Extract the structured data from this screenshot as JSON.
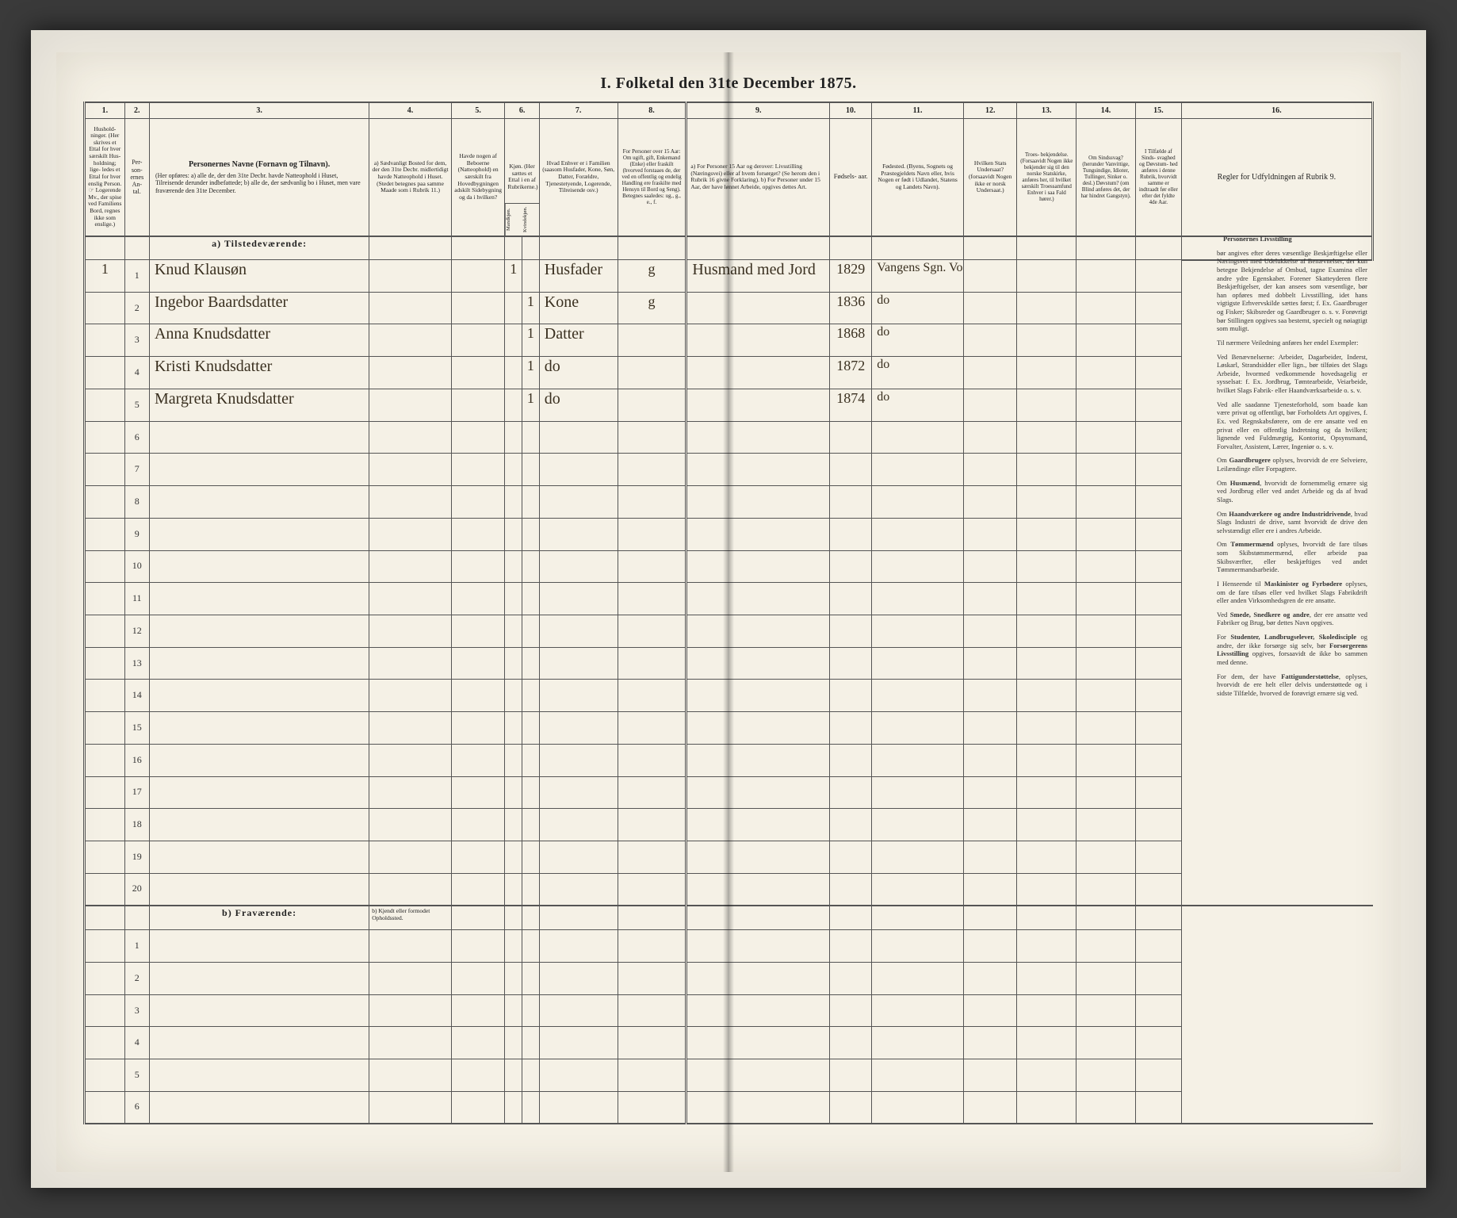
{
  "title": "I. Folketal den 31te December 1875.",
  "column_numbers": [
    "1.",
    "2.",
    "3.",
    "4.",
    "5.",
    "6.",
    "7.",
    "8.",
    "9.",
    "10.",
    "11.",
    "12.",
    "13.",
    "14.",
    "15.",
    "16."
  ],
  "headers": {
    "c1": "Hushold-\nninger.\n(Her skrives et\nEttal for hver\nsærskilt Hus-\nholdning; lige-\nledes et Ettal for\nhver enslig\nPerson.\n☞ Logerende Mv.,\nder spise ved\nFamiliens\nBord, regnes ikke\nsom enslige.)",
    "c2": "Per-\nson-\nernes\nAn-\ntal.",
    "c3_title": "Personernes Navne (Fornavn og Tilnavn).",
    "c3_sub": "(Her opføres:\na) alle de, der den 31te Decbr. havde Natteophold i Huset, Tilreisende derunder indbefattede;\nb) alle de, der sædvanlig bo i Huset, men vare fraværende den 31te December.",
    "c4a": "a) Sædvanligt Bosted for dem, der den 31te Decbr. midlertidigt havde Natteophold i Huset. (Stedet betegnes paa samme Maade som i Rubrik 11.)",
    "c4b": "b) Kjendt eller formodet Opholdssted.",
    "c5": "Havde nogen af Beboerne (Natteophold) en særskilt fra Hovedbygningen adskilt Sidebygning og da i hvilken?",
    "c6": "Kjøn.\n(Her sættes et Ettal i en af Rubrikerne.)",
    "c6m": "Mandkjøn.",
    "c6k": "Kvindekjøn.",
    "c7": "Hvad Enhver er i Familien\n(saasom Husfader, Kone, Søn, Datter, Forældre, Tjenestetyende, Logerende, Tilreisende osv.)",
    "c8": "For Personer over 15 Aar: Om ugift, gift, Enkemand (Enke) eller fraskilt (hvorved forstaaes de, der ved en offentlig og endelig Handling ere fraskilte med Hensyn til Bord og Seng).\nBetegnes saaledes: ug., g., e., f.",
    "c9": "a) For Personer 15 Aar og derover: Livsstilling (Næringsvei) eller af hvem forsørget? (Se herom den i Rubrik 16 givne Forklaring).\nb) For Personer under 15 Aar, der have lønnet Arbeide, opgives dettes Art.",
    "c10": "Fødsels-\naar.",
    "c11": "Fødested.\n(Byens, Sognets og Præstegjeldets Navn eller, hvis Nogen er født i Udlandet, Statens og Landets Navn).",
    "c12": "Hvilken Stats Undersaat?\n(forsaavidt Nogen ikke er norsk Undersaat.)",
    "c13": "Troes-\nbekjendelse.\n(Forsaavidt Nogen ikke bekjender sig til den norske Statskirke, anføres her, til hvilket særskilt Troessamfund Enhver i saa Fald hører.)",
    "c14": "Om Sindssvag? (herunder Vanvittige, Tungsindige, Idioter, Tullinger, Sinker o. desl.) Døvstum? (om Blind anføres det, der har hindret Gangstyn).",
    "c15": "I Tilfælde af Sinds-\nsvaghed og Døvstum-\nhed anføres i denne Rubrik, hvorvidt samme er indtraadt før eller efter det fyldte 4de Aar.",
    "c16": "Regler for Udfyldningen af Rubrik 9."
  },
  "section_present": "a)  Tilstedeværende:",
  "section_absent": "b)  Fraværende:",
  "rows": [
    {
      "hh": "1",
      "n": "1",
      "name": "Knud Klausøn",
      "m": "1",
      "k": "",
      "rel": "Husfader",
      "civ": "g",
      "occ": "Husmand med Jord",
      "year": "1829",
      "place": "Vangens Sgn. Voss"
    },
    {
      "hh": "",
      "n": "2",
      "name": "Ingebor Baardsdatter",
      "m": "",
      "k": "1",
      "rel": "Kone",
      "civ": "g",
      "occ": "",
      "year": "1836",
      "place": "do"
    },
    {
      "hh": "",
      "n": "3",
      "name": "Anna Knudsdatter",
      "m": "",
      "k": "1",
      "rel": "Datter",
      "civ": "",
      "occ": "",
      "year": "1868",
      "place": "do"
    },
    {
      "hh": "",
      "n": "4",
      "name": "Kristi Knudsdatter",
      "m": "",
      "k": "1",
      "rel": "do",
      "civ": "",
      "occ": "",
      "year": "1872",
      "place": "do"
    },
    {
      "hh": "",
      "n": "5",
      "name": "Margreta Knudsdatter",
      "m": "",
      "k": "1",
      "rel": "do",
      "civ": "",
      "occ": "",
      "year": "1874",
      "place": "do"
    }
  ],
  "blank_present_rows": 15,
  "blank_absent_rows": 6,
  "rules_heading": "Personernes Livsstilling",
  "rules_paragraphs": [
    "bør angives efter deres væsentlige Beskjæftigelse eller Næringsvei med Udelukkelse af Benævnelser, der kun betegne Bekjendelse af Ombud, tagne Examina eller andre ydre Egenskaber. Forener Skatteyderen flere Beskjæftigelser, der kan ansees som væsentlige, bør han opføres med dobbelt Livsstilling, idet hans vigtigste Erhvervskilde sættes først; f. Ex. Gaardbruger og Fisker; Skibsreder og Gaardbruger o. s. v. Forøvrigt bør Stillingen opgives saa bestemt, specielt og nøiagtigt som muligt.",
    "Til nærmere Veiledning anføres her endel Exempler:",
    "Ved Benævnelserne: Arbeider, Dagarbeider, Inderst, Løskarl, Strandsidder eller lign., bør tilføies det Slags Arbeide, hvormed vedkommende hovedsagelig er sysselsat: f. Ex. Jordbrug, Tømtearbeide, Veiarbeide, hvilket Slags Fabrik- eller Haandværksarbeide o. s. v.",
    "Ved alle saadanne Tjenesteforhold, som baade kan være privat og offentligt, bør Forholdets Art opgives, f. Ex. ved Regnskabsførere, om de ere ansatte ved en privat eller en offentlig Indretning og da hvilken; lignende ved Fuldmægtig, Kontorist, Opsynsmand, Forvalter, Assistent, Lærer, Ingeniør o. s. v.",
    "Om <b>Gaardbrugere</b> oplyses, hvorvidt de ere Selveiere, Leilændinge eller Forpagtere.",
    "Om <b>Husmænd</b>, hvorvidt de fornemmelig ernære sig ved Jordbrug eller ved andet Arbeide og da af hvad Slags.",
    "Om <b>Haandværkere og andre Industridrivende</b>, hvad Slags Industri de drive, samt hvorvidt de drive den selvstændigt eller ere i andres Arbeide.",
    "Om <b>Tømmermænd</b> oplyses, hvorvidt de fare tilsøs som Skibstømmermænd, eller arbeide paa Skibsværfter, eller beskjæftiges ved andet Tømmermandsarbeide.",
    "I Henseende til <b>Maskinister og Fyrbødere</b> oplyses, om de fare tilsøs eller ved hvilket Slags Fabrikdrift eller anden Virksomhedsgren de ere ansatte.",
    "Ved <b>Smede, Snedkere og andre</b>, der ere ansatte ved Fabriker og Brug, bør dettes Navn opgives.",
    "For <b>Studenter, Landbrugselever, Skoledisciple</b> og andre, der ikke forsørge sig selv, bør <b>Forsørgerens Livsstilling</b> opgives, forsaavidt de ikke bo sammen med denne.",
    "For dem, der have <b>Fattigunderstøttelse</b>, oplyses, hvorvidt de ere helt eller delvis understøttede og i sidste Tilfælde, hvorved de forøvrigt ernære sig ved."
  ]
}
